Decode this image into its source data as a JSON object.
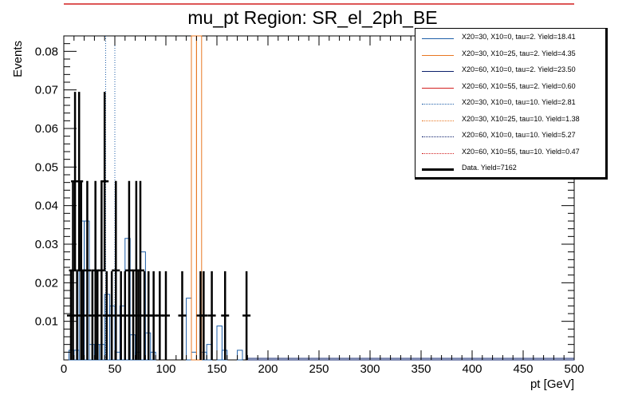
{
  "chart_data": {
    "type": "histogram",
    "title": "mu_pt Region: SR_el_2ph_BE",
    "xlabel": "pt [GeV]",
    "ylabel": "Events",
    "xlim": [
      0,
      500
    ],
    "ylim": [
      0,
      0.084
    ],
    "x_ticks": [
      0,
      50,
      100,
      150,
      200,
      250,
      300,
      350,
      400,
      450,
      500
    ],
    "x_tick_labels": [
      "0",
      "50",
      "100",
      "150",
      "200",
      "250",
      "300",
      "350",
      "400",
      "450",
      "500"
    ],
    "y_ticks": [
      0.01,
      0.02,
      0.03,
      0.04,
      0.05,
      0.06,
      0.07,
      0.08
    ],
    "y_tick_labels": [
      "0.01",
      "0.02",
      "0.03",
      "0.04",
      "0.05",
      "0.06",
      "0.07",
      "0.08"
    ],
    "bin_width": 5,
    "legend": [
      {
        "label": "X20=30, X10=0, tau=2. Yield=18.41",
        "color": "#1f5fa8",
        "style": "solid"
      },
      {
        "label": "X20=30, X10=25, tau=2. Yield=4.35",
        "color": "#e87722",
        "style": "solid"
      },
      {
        "label": "X20=60, X10=0, tau=2. Yield=23.50",
        "color": "#0b1f6b",
        "style": "solid"
      },
      {
        "label": "X20=60, X10=55, tau=2. Yield=0.60",
        "color": "#d21f1f",
        "style": "solid"
      },
      {
        "label": "X20=30, X10=0, tau=10. Yield=2.81",
        "color": "#1f5fa8",
        "style": "dotted"
      },
      {
        "label": "X20=30, X10=25, tau=10. Yield=1.38",
        "color": "#e87722",
        "style": "dotted"
      },
      {
        "label": "X20=60, X10=0, tau=10. Yield=5.27",
        "color": "#0b1f6b",
        "style": "dotted"
      },
      {
        "label": "X20=60, X10=55, tau=10. Yield=0.47",
        "color": "#d21f1f",
        "style": "dotted"
      },
      {
        "label": "Data. Yield=7162",
        "color": "#000000",
        "style": "thick"
      }
    ],
    "series": [
      {
        "name": "X20=30, X10=0, tau=2. Yield=18.41",
        "color": "#1f5fa8",
        "style": "solid",
        "bins": [
          [
            5,
            10,
            0.0025
          ],
          [
            10,
            15,
            0.0025
          ],
          [
            15,
            20,
            0.036
          ],
          [
            20,
            25,
            0.036
          ],
          [
            25,
            30,
            0.004
          ],
          [
            30,
            35,
            0.004
          ],
          [
            35,
            40,
            0.004
          ],
          [
            40,
            45,
            0.017
          ],
          [
            45,
            50,
            0.014
          ],
          [
            50,
            55,
            0.002
          ],
          [
            55,
            60,
            0.014
          ],
          [
            60,
            65,
            0.0315
          ],
          [
            65,
            70,
            0.0065
          ],
          [
            70,
            75,
            0.002
          ],
          [
            75,
            80,
            0.028
          ],
          [
            80,
            85,
            0.007
          ],
          [
            85,
            90,
            0.002
          ],
          [
            120,
            125,
            0.016
          ],
          [
            125,
            130,
            0.002
          ],
          [
            135,
            140,
            0.002
          ],
          [
            140,
            145,
            0.004
          ],
          [
            150,
            155,
            0.0088
          ],
          [
            155,
            160,
            0.0025
          ],
          [
            170,
            175,
            0.0025
          ]
        ]
      },
      {
        "name": "X20=30, X10=25, tau=2. Yield=4.35",
        "color": "#e87722",
        "style": "solid",
        "bins": [
          [
            125,
            130,
            0.084
          ],
          [
            130,
            135,
            0.084
          ]
        ]
      },
      {
        "name": "X20=60, X10=0, tau=2. Yield=23.50",
        "color": "#0b1f6b",
        "style": "dashed",
        "bins": [
          [
            180,
            500,
            0.0004
          ]
        ]
      },
      {
        "name": "X20=30, X10=0, tau=10. Yield=2.81",
        "color": "#1f5fa8",
        "style": "dotted",
        "lines_at": [
          41,
          50
        ]
      },
      {
        "name": "Data. Yield=7162",
        "color": "#000000",
        "style": "points",
        "points": [
          {
            "x": 7,
            "y": 0.0115,
            "err": 0.0115
          },
          {
            "x": 9,
            "y": 0.0232,
            "err": 0.0232
          },
          {
            "x": 11,
            "y": 0.0463,
            "err": 0.0232
          },
          {
            "x": 13,
            "y": 0.0115,
            "err": 0.0115
          },
          {
            "x": 15,
            "y": 0.0463,
            "err": 0.0232
          },
          {
            "x": 17,
            "y": 0.0232,
            "err": 0.0232
          },
          {
            "x": 19,
            "y": 0.0115,
            "err": 0.0115
          },
          {
            "x": 23,
            "y": 0.0232,
            "err": 0.0232
          },
          {
            "x": 28,
            "y": 0.0115,
            "err": 0.0115
          },
          {
            "x": 31,
            "y": 0.0232,
            "err": 0.0232
          },
          {
            "x": 33,
            "y": 0.0115,
            "err": 0.0115
          },
          {
            "x": 37,
            "y": 0.0232,
            "err": 0.0232
          },
          {
            "x": 40,
            "y": 0.0463,
            "err": 0.0232
          },
          {
            "x": 42,
            "y": 0.0115,
            "err": 0.0115
          },
          {
            "x": 47,
            "y": 0.0115,
            "err": 0.0115
          },
          {
            "x": 51,
            "y": 0.0232,
            "err": 0.0232
          },
          {
            "x": 56,
            "y": 0.0115,
            "err": 0.0115
          },
          {
            "x": 60,
            "y": 0.0115,
            "err": 0.0115
          },
          {
            "x": 64,
            "y": 0.0232,
            "err": 0.0232
          },
          {
            "x": 68,
            "y": 0.0115,
            "err": 0.0115
          },
          {
            "x": 71,
            "y": 0.0232,
            "err": 0.0232
          },
          {
            "x": 73,
            "y": 0.0115,
            "err": 0.0115
          },
          {
            "x": 75,
            "y": 0.0232,
            "err": 0.0232
          },
          {
            "x": 79,
            "y": 0.0115,
            "err": 0.0115
          },
          {
            "x": 83,
            "y": 0.0115,
            "err": 0.0115
          },
          {
            "x": 88,
            "y": 0.0115,
            "err": 0.0115
          },
          {
            "x": 94,
            "y": 0.0115,
            "err": 0.0115
          },
          {
            "x": 100,
            "y": 0.0115,
            "err": 0.0115
          },
          {
            "x": 116,
            "y": 0.0115,
            "err": 0.0115
          },
          {
            "x": 137,
            "y": 0.0115,
            "err": 0.0115
          },
          {
            "x": 158,
            "y": 0.0115,
            "err": 0.0115
          },
          {
            "x": 179,
            "y": 0.0115,
            "err": 0.0115
          },
          {
            "x": 145,
            "y": 0.0115,
            "err": 0.0115
          },
          {
            "x": 134,
            "y": 0.0115,
            "err": 0.0115
          }
        ]
      }
    ]
  }
}
